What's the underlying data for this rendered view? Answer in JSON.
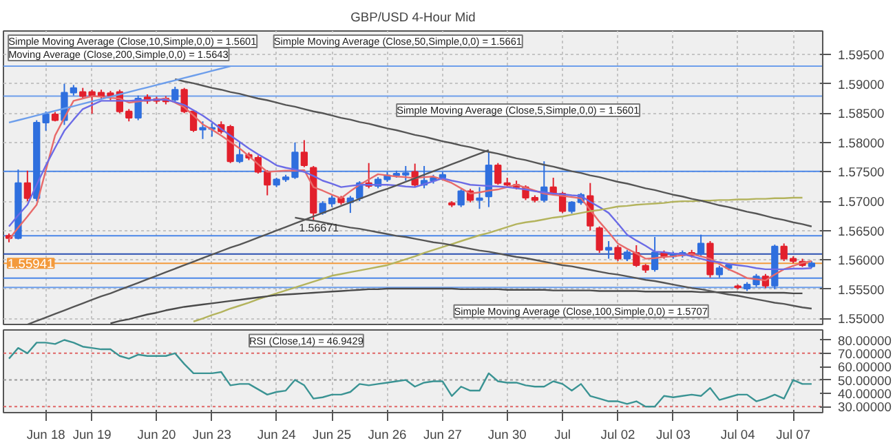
{
  "chart_data": [
    {
      "type": "candlestick",
      "title": "GBP/USD 4-Hour Mid",
      "categories": [
        null,
        null,
        null,
        null,
        null,
        null,
        null,
        null,
        null,
        null,
        null,
        null,
        null,
        null,
        null,
        null,
        null,
        null,
        null,
        null,
        null,
        null,
        null,
        null,
        null,
        null,
        null,
        null,
        null,
        null,
        null,
        null,
        null,
        null,
        null,
        null,
        null,
        null,
        null,
        null,
        null,
        null,
        null,
        null,
        null,
        null,
        null,
        null,
        null,
        null,
        null,
        null,
        null,
        null,
        null,
        null,
        null,
        null,
        null,
        null,
        null,
        null,
        null,
        null,
        null,
        null,
        null,
        null,
        null,
        null,
        null,
        null,
        null,
        null,
        null,
        null,
        null,
        null,
        null,
        null,
        null,
        null,
        null,
        null,
        null,
        null,
        null,
        null
      ],
      "ohlc": [
        [
          1.5641,
          1.5645,
          1.563,
          1.5637
        ],
        [
          1.5637,
          1.5754,
          1.5635,
          1.5731
        ],
        [
          1.5731,
          1.5752,
          1.57,
          1.5705
        ],
        [
          1.5705,
          1.5838,
          1.57,
          1.5834
        ],
        [
          1.5834,
          1.5853,
          1.582,
          1.5848
        ],
        [
          1.5848,
          1.5852,
          1.5836,
          1.5838
        ],
        [
          1.5838,
          1.59,
          1.583,
          1.5885
        ],
        [
          1.5885,
          1.5898,
          1.588,
          1.5893
        ],
        [
          1.5886,
          1.5893,
          1.5875,
          1.5879
        ],
        [
          1.5886,
          1.589,
          1.5849,
          1.588
        ],
        [
          1.5885,
          1.589,
          1.5875,
          1.5879
        ],
        [
          1.5884,
          1.5888,
          1.5872,
          1.588
        ],
        [
          1.5886,
          1.589,
          1.585,
          1.5853
        ],
        [
          1.5853,
          1.5857,
          1.5836,
          1.5842
        ],
        [
          1.5842,
          1.588,
          1.5838,
          1.5875
        ],
        [
          1.5877,
          1.5882,
          1.5866,
          1.5871
        ],
        [
          1.5874,
          1.5878,
          1.5866,
          1.5871
        ],
        [
          1.5875,
          1.5879,
          1.5865,
          1.587
        ],
        [
          1.5873,
          1.5895,
          1.5868,
          1.589
        ],
        [
          1.589,
          1.5893,
          1.585,
          1.5853
        ],
        [
          1.5853,
          1.5856,
          1.5818,
          1.5821
        ],
        [
          1.5822,
          1.5836,
          1.5806,
          1.5825
        ],
        [
          1.5823,
          1.5833,
          1.581,
          1.5825
        ],
        [
          1.583,
          1.5836,
          1.5815,
          1.5819
        ],
        [
          1.5827,
          1.583,
          1.5765,
          1.5768
        ],
        [
          1.5768,
          1.58,
          1.5765,
          1.5779
        ],
        [
          1.5779,
          1.5783,
          1.577,
          1.5774
        ],
        [
          1.5774,
          1.5778,
          1.5747,
          1.575
        ],
        [
          1.575,
          1.5753,
          1.571,
          1.5728
        ],
        [
          1.5728,
          1.574,
          1.5724,
          1.5737
        ],
        [
          1.5737,
          1.5745,
          1.5733,
          1.5741
        ],
        [
          1.5741,
          1.58,
          1.5738,
          1.5783
        ],
        [
          1.5783,
          1.5804,
          1.5758,
          1.5761
        ],
        [
          1.5757,
          1.576,
          1.56671,
          1.568
        ],
        [
          1.568,
          1.57,
          1.5677,
          1.5696
        ],
        [
          1.5696,
          1.571,
          1.569,
          1.5705
        ],
        [
          1.5705,
          1.5709,
          1.5694,
          1.5698
        ],
        [
          1.5698,
          1.5709,
          1.568,
          1.5705
        ],
        [
          1.5705,
          1.5734,
          1.57,
          1.5731
        ],
        [
          1.5731,
          1.5765,
          1.5722,
          1.5726
        ],
        [
          1.5726,
          1.5741,
          1.5722,
          1.5737
        ],
        [
          1.5737,
          1.575,
          1.5733,
          1.5744
        ],
        [
          1.5744,
          1.5752,
          1.574,
          1.5747
        ],
        [
          1.5745,
          1.576,
          1.5735,
          1.5748
        ],
        [
          1.575,
          1.5764,
          1.5724,
          1.5728
        ],
        [
          1.5728,
          1.576,
          1.5722,
          1.5735
        ],
        [
          1.5735,
          1.5745,
          1.573,
          1.574
        ],
        [
          1.574,
          1.575,
          1.5736,
          1.5745
        ],
        [
          1.5697,
          1.57,
          1.569,
          1.5694
        ],
        [
          1.5694,
          1.572,
          1.569,
          1.5717
        ],
        [
          1.5717,
          1.5721,
          1.5698,
          1.5702
        ],
        [
          1.5702,
          1.5724,
          1.5687,
          1.5705
        ],
        [
          1.5708,
          1.5783,
          1.569,
          1.5761
        ],
        [
          1.5761,
          1.5765,
          1.5728,
          1.5731
        ],
        [
          1.5731,
          1.574,
          1.5725,
          1.5728
        ],
        [
          1.5728,
          1.5735,
          1.572,
          1.5724
        ],
        [
          1.5724,
          1.5727,
          1.5702,
          1.5706
        ],
        [
          1.5706,
          1.571,
          1.5698,
          1.5702
        ],
        [
          1.5702,
          1.5768,
          1.5698,
          1.5724
        ],
        [
          1.5724,
          1.574,
          1.571,
          1.5713
        ],
        [
          1.5713,
          1.5716,
          1.568,
          1.5683
        ],
        [
          1.5683,
          1.57,
          1.5679,
          1.5698
        ],
        [
          1.5698,
          1.5714,
          1.5694,
          1.5711
        ],
        [
          1.5709,
          1.5731,
          1.565,
          1.5658
        ],
        [
          1.5654,
          1.5657,
          1.5612,
          1.5617
        ],
        [
          1.5617,
          1.5632,
          1.5602,
          1.5621
        ],
        [
          1.5621,
          1.5625,
          1.5598,
          1.5602
        ],
        [
          1.5602,
          1.5617,
          1.5598,
          1.5613
        ],
        [
          1.5612,
          1.5625,
          1.5588,
          1.5591
        ],
        [
          1.559,
          1.5593,
          1.5578,
          1.5583
        ],
        [
          1.5584,
          1.5639,
          1.558,
          1.5613
        ],
        [
          1.5612,
          1.5616,
          1.5602,
          1.5606
        ],
        [
          1.5606,
          1.5614,
          1.5602,
          1.561
        ],
        [
          1.5608,
          1.5616,
          1.5604,
          1.5612
        ],
        [
          1.5612,
          1.5617,
          1.5604,
          1.5608
        ],
        [
          1.561,
          1.5643,
          1.5606,
          1.5628
        ],
        [
          1.5628,
          1.5632,
          1.557,
          1.5575
        ],
        [
          1.5575,
          1.559,
          1.557,
          1.5586
        ],
        [
          1.5586,
          1.5594,
          1.5582,
          1.5591
        ],
        [
          1.5555,
          1.5558,
          1.555,
          1.5553
        ],
        [
          1.5551,
          1.5562,
          1.5547,
          1.5558
        ],
        [
          1.5558,
          1.5576,
          1.5554,
          1.5572
        ],
        [
          1.5572,
          1.5576,
          1.5552,
          1.5556
        ],
        [
          1.5556,
          1.5626,
          1.555,
          1.5623
        ],
        [
          1.5623,
          1.5628,
          1.5598,
          1.5602
        ],
        [
          1.5602,
          1.5606,
          1.5594,
          1.5598
        ],
        [
          1.5597,
          1.5602,
          1.5588,
          1.5591
        ],
        [
          1.5589,
          1.5598,
          1.5586,
          1.55941
        ]
      ],
      "colors": [
        "#e2202c",
        "#2f6fde",
        "#e2202c",
        "#2f6fde",
        "#2f6fde",
        "#e2202c",
        "#2f6fde",
        "#2f6fde",
        "#e2202c",
        "#e2202c",
        "#e2202c",
        "#e2202c",
        "#e2202c",
        "#e2202c",
        "#2f6fde",
        "#e2202c",
        "#e2202c",
        "#e2202c",
        "#2f6fde",
        "#e2202c",
        "#e2202c",
        "#2f6fde",
        "#2f6fde",
        "#e2202c",
        "#e2202c",
        "#2f6fde",
        "#e2202c",
        "#e2202c",
        "#e2202c",
        "#2f6fde",
        "#2f6fde",
        "#2f6fde",
        "#e2202c",
        "#e2202c",
        "#2f6fde",
        "#2f6fde",
        "#e2202c",
        "#2f6fde",
        "#2f6fde",
        "#e2202c",
        "#2f6fde",
        "#2f6fde",
        "#2f6fde",
        "#2f6fde",
        "#e2202c",
        "#2f6fde",
        "#2f6fde",
        "#2f6fde",
        "#e2202c",
        "#2f6fde",
        "#e2202c",
        "#2f6fde",
        "#2f6fde",
        "#e2202c",
        "#e2202c",
        "#e2202c",
        "#e2202c",
        "#e2202c",
        "#2f6fde",
        "#e2202c",
        "#e2202c",
        "#2f6fde",
        "#2f6fde",
        "#e2202c",
        "#e2202c",
        "#2f6fde",
        "#e2202c",
        "#2f6fde",
        "#e2202c",
        "#e2202c",
        "#2f6fde",
        "#e2202c",
        "#2f6fde",
        "#2f6fde",
        "#e2202c",
        "#2f6fde",
        "#e2202c",
        "#2f6fde",
        "#2f6fde",
        "#e2202c",
        "#2f6fde",
        "#2f6fde",
        "#e2202c",
        "#2f6fde",
        "#e2202c",
        "#e2202c",
        "#e2202c",
        "#2f6fde"
      ],
      "series": [
        {
          "type": "line",
          "color": "#e86a6a",
          "values": [
            1.5635,
            1.5655,
            1.5674,
            1.5694,
            1.5753,
            1.5812,
            1.5842,
            1.5871,
            1.5875,
            1.5879,
            1.5878,
            1.5876,
            1.5875,
            1.5868,
            1.587,
            1.5872,
            1.5873,
            1.5875,
            1.5868,
            1.586,
            1.5846,
            1.5831,
            1.5822,
            1.5812,
            1.5801,
            1.579,
            1.5777,
            1.5763,
            1.575,
            1.5751,
            1.5752,
            1.5752,
            1.5753,
            1.5724,
            1.5718,
            1.5711,
            1.5705,
            1.5717,
            1.5728,
            1.5737,
            1.5746,
            1.5744,
            1.5742,
            1.5741,
            1.5739,
            1.5741,
            1.5742,
            1.5737,
            1.5731,
            1.5722,
            1.5713,
            1.5715,
            1.5718,
            1.572,
            1.5724,
            1.5728,
            1.5723,
            1.5718,
            1.5713,
            1.5711,
            1.5709,
            1.5707,
            1.5705,
            1.5685,
            1.5665,
            1.5647,
            1.5628,
            1.5619,
            1.5611,
            1.5602,
            1.5603,
            1.5605,
            1.5606,
            1.5608,
            1.561,
            1.5606,
            1.5602,
            1.5593,
            1.5584,
            1.5577,
            1.5569,
            1.5567,
            1.5565,
            1.5575,
            1.5584,
            1.559,
            1.5595,
            1.5598
          ]
        },
        {
          "type": "line",
          "color": "#6b6be6",
          "values": [
            1.5657,
            1.5676,
            1.5694,
            1.5728,
            1.5761,
            1.5791,
            1.582,
            1.5839,
            1.5857,
            1.5864,
            1.5871,
            1.5871,
            1.5871,
            1.5871,
            1.5872,
            1.5872,
            1.5873,
            1.5873,
            1.5869,
            1.5864,
            1.5855,
            1.5846,
            1.5835,
            1.5823,
            1.5812,
            1.5801,
            1.579,
            1.578,
            1.5771,
            1.5761,
            1.5757,
            1.5754,
            1.575,
            1.5743,
            1.5735,
            1.573,
            1.5724,
            1.5726,
            1.5728,
            1.5728,
            1.5728,
            1.5728,
            1.5727,
            1.5725,
            1.5724,
            1.5729,
            1.5734,
            1.5739,
            1.5735,
            1.5732,
            1.5728,
            1.5727,
            1.5726,
            1.5725,
            1.5724,
            1.5722,
            1.572,
            1.5717,
            1.5715,
            1.5713,
            1.5712,
            1.571,
            1.5709,
            1.5699,
            1.569,
            1.568,
            1.5662,
            1.5643,
            1.5633,
            1.5624,
            1.5614,
            1.5613,
            1.5611,
            1.561,
            1.5606,
            1.5602,
            1.5598,
            1.5596,
            1.5593,
            1.5591,
            1.5589,
            1.5586,
            1.5584,
            1.5584,
            1.5584,
            1.5585,
            1.5585,
            1.5586
          ]
        },
        {
          "type": "line",
          "color": "#b3b35c",
          "values": [
            null,
            null,
            null,
            null,
            null,
            null,
            null,
            null,
            null,
            null,
            null,
            null,
            null,
            null,
            null,
            null,
            null,
            null,
            null,
            null,
            1.5495,
            1.55,
            1.5506,
            1.5511,
            1.5517,
            1.5522,
            1.5527,
            1.5533,
            1.5538,
            1.5543,
            1.5548,
            1.5553,
            1.5558,
            1.5563,
            1.5568,
            1.5573,
            1.5576,
            1.5579,
            1.5582,
            1.5585,
            1.5588,
            1.5591,
            1.5596,
            1.5601,
            1.5606,
            1.5612,
            1.5617,
            1.5622,
            1.5627,
            1.5632,
            1.5637,
            1.5642,
            1.5646,
            1.5651,
            1.5656,
            1.5661,
            1.5664,
            1.5666,
            1.5669,
            1.5672,
            1.5674,
            1.5677,
            1.568,
            1.5683,
            1.5685,
            1.5688,
            1.5691,
            1.5692,
            1.5694,
            1.5695,
            1.5696,
            1.5697,
            1.5699,
            1.57,
            1.57,
            1.5701,
            1.5701,
            1.5702,
            1.5702,
            1.5703,
            1.5703,
            1.5704,
            1.5704,
            1.5705,
            1.5705,
            1.5706,
            1.5706,
            null
          ]
        },
        {
          "type": "line",
          "color": "#4a4a4a",
          "values": [
            null,
            null,
            null,
            null,
            null,
            null,
            null,
            null,
            null,
            null,
            null,
            1.5492,
            1.5496,
            1.5499,
            1.5503,
            1.5507,
            1.551,
            1.5514,
            1.5517,
            1.552,
            1.5522,
            1.5524,
            1.5526,
            1.5528,
            1.553,
            1.5532,
            1.5534,
            1.5536,
            1.5538,
            1.554,
            1.5541,
            1.5542,
            1.5543,
            1.5544,
            1.5545,
            1.5546,
            1.5547,
            1.5548,
            1.5549,
            1.555,
            1.555,
            1.5551,
            1.5551,
            1.5551,
            1.5551,
            1.5551,
            1.5551,
            1.5551,
            1.5551,
            1.555,
            1.555,
            1.555,
            1.555,
            1.555,
            1.5549,
            1.5549,
            1.5549,
            1.5549,
            1.5549,
            1.5548,
            1.5548,
            1.5548,
            1.5548,
            1.5548,
            1.5547,
            1.5547,
            1.5547,
            1.5547,
            1.5547,
            1.5546,
            1.5546,
            1.5546,
            1.5546,
            1.5546,
            1.5546,
            1.5545,
            1.5545,
            1.5545,
            1.5545,
            1.5545,
            1.5544,
            1.5544,
            1.5544,
            1.5544,
            1.5544,
            1.5543,
            1.5543,
            null
          ]
        },
        {
          "type": "line",
          "color": "#555555",
          "values": [
            null,
            null,
            null,
            null,
            null,
            null,
            null,
            null,
            null,
            null,
            null,
            null,
            null,
            null,
            null,
            null,
            null,
            null,
            1.5908,
            1.5904,
            1.5901,
            1.5897,
            1.5893,
            1.589,
            1.5886,
            1.5883,
            1.5879,
            1.5875,
            1.5872,
            1.5868,
            1.5864,
            1.5861,
            1.5857,
            1.5853,
            1.585,
            1.5846,
            1.5842,
            1.5839,
            1.5835,
            1.5832,
            1.5828,
            1.5824,
            1.5821,
            1.5817,
            1.5813,
            1.581,
            1.5806,
            1.5802,
            1.5799,
            1.5795,
            1.5792,
            1.5788,
            1.5784,
            1.5781,
            1.5777,
            1.5773,
            1.577,
            1.5766,
            1.5762,
            1.5759,
            1.5755,
            1.5751,
            1.5748,
            1.5744,
            1.5741,
            1.5737,
            1.5733,
            1.573,
            1.5726,
            1.5722,
            1.5719,
            1.5715,
            1.5711,
            1.5708,
            1.5704,
            1.5701,
            1.5697,
            1.5693,
            1.569,
            1.5686,
            1.5682,
            1.5679,
            1.5675,
            1.5671,
            1.5668,
            1.5664,
            1.5661,
            1.5657
          ]
        },
        {
          "type": "line",
          "color": "#555555",
          "values": [
            null,
            null,
            null,
            null,
            null,
            null,
            null,
            null,
            null,
            null,
            null,
            null,
            null,
            null,
            null,
            null,
            null,
            null,
            null,
            null,
            null,
            null,
            null,
            null,
            null,
            null,
            null,
            null,
            null,
            null,
            null,
            1.5672,
            1.5669,
            1.5667,
            1.5664,
            1.5661,
            1.5658,
            1.5655,
            1.5653,
            1.565,
            1.5647,
            1.5644,
            1.5641,
            1.5639,
            1.5636,
            1.5633,
            1.563,
            1.5628,
            1.5625,
            1.5622,
            1.5619,
            1.5616,
            1.5614,
            1.5611,
            1.5608,
            1.5605,
            1.5603,
            1.56,
            1.5597,
            1.5594,
            1.5591,
            1.5589,
            1.5586,
            1.5583,
            1.558,
            1.5577,
            1.5575,
            1.5572,
            1.5569,
            1.5566,
            1.5564,
            1.5561,
            1.5558,
            1.5555,
            1.5552,
            1.555,
            1.5547,
            1.5544,
            1.5541,
            1.5539,
            1.5536,
            1.5533,
            1.553,
            1.5527,
            1.5525,
            1.5522,
            1.5519,
            1.5517
          ]
        },
        {
          "type": "line",
          "color": "#555555",
          "values": [
            null,
            null,
            1.549,
            1.5496,
            1.5502,
            1.5508,
            1.5514,
            1.552,
            1.5526,
            1.5532,
            1.5538,
            1.5543,
            1.5549,
            1.5555,
            1.5561,
            1.5567,
            1.5573,
            1.5579,
            1.5585,
            1.5591,
            1.5597,
            1.5603,
            1.5609,
            1.5615,
            1.5621,
            1.5626,
            1.5632,
            1.5638,
            1.5644,
            1.565,
            1.5656,
            1.5662,
            1.5668,
            1.5674,
            1.568,
            1.5686,
            1.5692,
            1.5698,
            1.5704,
            1.571,
            1.5716,
            1.5721,
            1.5727,
            1.5733,
            1.5739,
            1.5745,
            1.5751,
            1.5757,
            1.5763,
            1.5769,
            1.5775,
            1.5781,
            1.5787,
            null,
            null,
            null,
            null,
            null,
            null,
            null,
            null,
            null,
            null,
            null,
            null,
            null,
            null,
            null,
            null,
            null,
            null,
            null,
            null,
            null,
            null,
            null,
            null,
            null,
            null,
            null,
            null,
            null,
            null,
            null,
            null,
            null,
            null,
            null
          ]
        },
        {
          "type": "line",
          "color": "#6d9eeb",
          "values": [
            1.5834,
            1.5838,
            1.5842,
            1.5846,
            1.585,
            1.5854,
            1.5858,
            1.5862,
            1.5866,
            1.587,
            1.5874,
            1.5878,
            1.5882,
            1.5886,
            1.589,
            1.5894,
            1.5898,
            1.5902,
            1.5906,
            1.591,
            1.5914,
            1.5918,
            1.5922,
            1.5926,
            1.593,
            null,
            null,
            null,
            null,
            null,
            null,
            null,
            null,
            null,
            null,
            null,
            null,
            null,
            null,
            null,
            null,
            null,
            null,
            null,
            null,
            null,
            null,
            null,
            null,
            null,
            null,
            null,
            null,
            null,
            null,
            null,
            null,
            null,
            null,
            null,
            null,
            null,
            null,
            null,
            null,
            null,
            null,
            null,
            null,
            null,
            null,
            null,
            null,
            null,
            null,
            null,
            null,
            null,
            null,
            null,
            null,
            null,
            null,
            null,
            null,
            null,
            null,
            null
          ]
        }
      ],
      "ref_lines": [
        {
          "axis": "y",
          "value": 1.593,
          "color": "#6d9eeb"
        },
        {
          "axis": "y",
          "value": 1.5879,
          "color": "#6d9eeb"
        },
        {
          "axis": "y",
          "value": 1.5751,
          "color": "#4a86e8"
        },
        {
          "axis": "y",
          "value": 1.5641,
          "color": "#4a86e8"
        },
        {
          "axis": "y",
          "value": 1.561,
          "color": "#2a4fb0"
        },
        {
          "axis": "y",
          "value": 1.5569,
          "color": "#4a86e8"
        },
        {
          "axis": "y",
          "value": 1.5553,
          "color": "#6d9eeb"
        },
        {
          "axis": "y",
          "value": 1.55941,
          "color": "#f39a3c",
          "label": "1.55941"
        }
      ],
      "annotations": [
        "Simple Moving Average (Close,10,Simple,0,0) = 1.5601",
        "Simple Moving Average (Close,50,Simple,0,0) = 1.5661",
        "Moving Average (Close,200,Simple,0,0) = 1.5643",
        "Simple Moving Average (Close,5,Simple,0,0) = 1.5601",
        "Simple Moving Average (Close,100,Simple,0,0) = 1.5707",
        {
          "text": "1.56671",
          "y": 1.56671
        }
      ],
      "ylim": [
        1.549,
        1.599
      ],
      "yticks": [
        {
          "value": 1.55,
          "label": "1.55000"
        },
        {
          "value": 1.555,
          "label": "1.55500"
        },
        {
          "value": 1.56,
          "label": "1.56000"
        },
        {
          "value": 1.565,
          "label": "1.56500"
        },
        {
          "value": 1.57,
          "label": "1.57000"
        },
        {
          "value": 1.575,
          "label": "1.57500"
        },
        {
          "value": 1.58,
          "label": "1.58000"
        },
        {
          "value": 1.585,
          "label": "1.58500"
        },
        {
          "value": 1.59,
          "label": "1.59000"
        },
        {
          "value": 1.595,
          "label": "1.59500"
        }
      ],
      "grid": true,
      "tick_labels": "y"
    },
    {
      "type": "line",
      "series": [
        {
          "color": "#3a9393",
          "values": [
            66,
            74,
            70,
            78,
            78,
            77,
            80,
            78,
            75,
            74,
            73,
            73,
            68,
            66,
            69,
            68,
            68,
            68,
            70,
            62,
            55,
            55,
            55,
            56,
            46,
            47,
            47,
            43,
            39,
            41,
            42,
            50,
            46,
            36,
            37,
            39,
            39,
            41,
            47,
            46,
            47,
            48,
            49,
            50,
            45,
            48,
            49,
            49,
            38,
            45,
            42,
            42,
            55,
            49,
            48,
            48,
            46,
            45,
            45,
            49,
            47,
            42,
            47,
            38,
            36,
            34,
            34,
            32,
            34,
            30,
            30,
            38,
            37,
            38,
            39,
            38,
            44,
            35,
            37,
            39,
            39,
            34,
            36,
            39,
            36,
            50,
            47,
            47
          ]
        }
      ],
      "ref_lines": [
        {
          "axis": "y",
          "value": 70,
          "color": "#e06666",
          "line_style": "dotted"
        },
        {
          "axis": "y",
          "value": 50,
          "color": "#999999",
          "line_style": "dotted"
        },
        {
          "axis": "y",
          "value": 30,
          "color": "#e06666",
          "line_style": "dotted"
        }
      ],
      "annotations": [
        "RSI (Close,14) = 46.9429"
      ],
      "categories": [
        null,
        null,
        null,
        null,
        "Jun 18",
        null,
        null,
        null,
        null,
        "Jun 19",
        null,
        null,
        null,
        null,
        null,
        null,
        "Jun 20",
        null,
        null,
        null,
        null,
        null,
        "Jun 23",
        null,
        null,
        null,
        null,
        null,
        null,
        "Jun 24",
        null,
        null,
        null,
        null,
        null,
        "Jun 25",
        null,
        null,
        null,
        null,
        null,
        "Jun 26",
        null,
        null,
        null,
        null,
        null,
        "Jun 27",
        null,
        null,
        null,
        null,
        null,
        null,
        "Jun 30",
        null,
        null,
        null,
        null,
        null,
        "Jul",
        null,
        null,
        null,
        null,
        null,
        "Jul 02",
        null,
        null,
        null,
        null,
        null,
        "Jul 03",
        null,
        null,
        null,
        null,
        null,
        null,
        "Jul 04",
        null,
        null,
        null,
        null,
        null,
        "Jul 07",
        null,
        null
      ],
      "ylim": [
        25.5,
        87.5
      ],
      "yticks": [
        {
          "value": 30,
          "label": "30.00000"
        },
        {
          "value": 40,
          "label": "40.00000"
        },
        {
          "value": 50,
          "label": "50.00000"
        },
        {
          "value": 60,
          "label": "60.00000"
        },
        {
          "value": 70,
          "label": "70.00000"
        },
        {
          "value": 80,
          "label": "80.00000"
        }
      ],
      "grid": "x"
    }
  ]
}
